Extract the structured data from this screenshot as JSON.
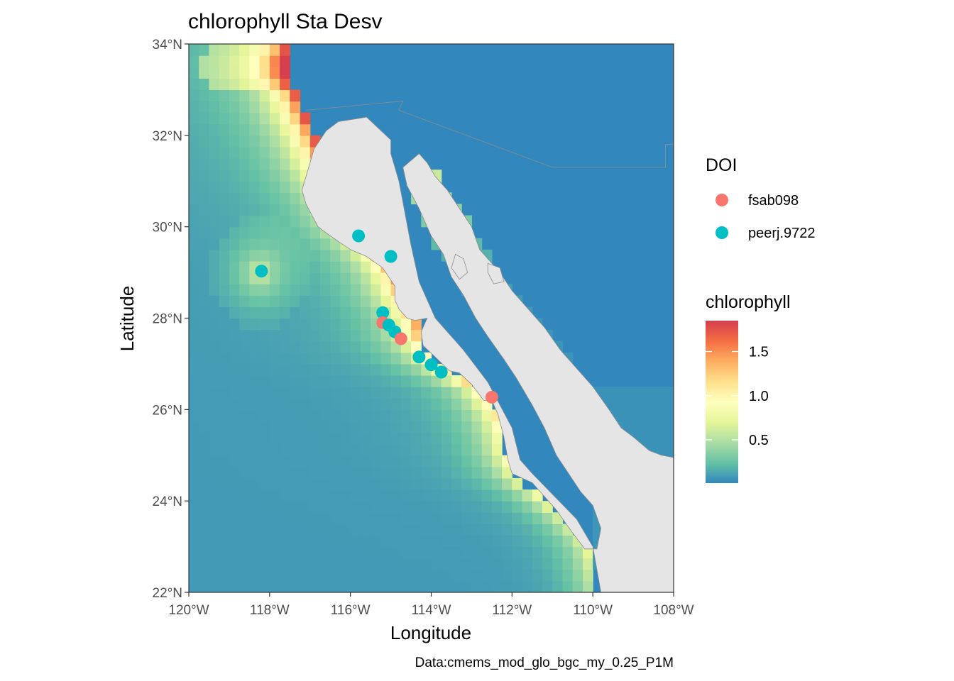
{
  "title": "chlorophyll Sta Desv",
  "caption": "Data:cmems_mod_glo_bgc_my_0.25_P1M",
  "colors": {
    "land": "#e5e5e5",
    "land_stroke": "#8c8c8c",
    "panel_border": "#333333",
    "fsab098": "#F8766D",
    "peerj.9722": "#00BFC4",
    "scale": [
      "#3288BD",
      "#66C2A5",
      "#ABDDA4",
      "#E6F598",
      "#FFFFBF",
      "#FEE08B",
      "#FDAE61",
      "#F46D43",
      "#D53E4F"
    ]
  },
  "chart_data": {
    "type": "map",
    "title": "chlorophyll Sta Desv",
    "xlabel": "Longitude",
    "ylabel": "Latitude",
    "xlim": [
      -120,
      -108
    ],
    "ylim": [
      22,
      34
    ],
    "x_ticks": [
      {
        "value": -120,
        "label": "120°W"
      },
      {
        "value": -118,
        "label": "118°W"
      },
      {
        "value": -116,
        "label": "116°W"
      },
      {
        "value": -114,
        "label": "114°W"
      },
      {
        "value": -112,
        "label": "112°W"
      },
      {
        "value": -110,
        "label": "110°W"
      },
      {
        "value": -108,
        "label": "108°W"
      }
    ],
    "y_ticks": [
      {
        "value": 22,
        "label": "22°N"
      },
      {
        "value": 24,
        "label": "24°N"
      },
      {
        "value": 26,
        "label": "26°N"
      },
      {
        "value": 28,
        "label": "28°N"
      },
      {
        "value": 30,
        "label": "30°N"
      },
      {
        "value": 32,
        "label": "32°N"
      },
      {
        "value": 34,
        "label": "34°N"
      }
    ],
    "grid": false,
    "legend_position": "right",
    "doi_legend": {
      "title": "DOI",
      "entries": [
        {
          "name": "fsab098",
          "color": "#F8766D"
        },
        {
          "name": "peerj.9722",
          "color": "#00BFC4"
        }
      ]
    },
    "colorbar": {
      "title": "chlorophyll",
      "min": 0.01,
      "max": 1.85,
      "ticks": [
        {
          "value": 0.5,
          "label": "0.5"
        },
        {
          "value": 1.0,
          "label": "1.0"
        },
        {
          "value": 1.5,
          "label": "1.5"
        }
      ]
    },
    "points": [
      {
        "lon": -115.8,
        "lat": 29.8,
        "doi": "peerj.9722"
      },
      {
        "lon": -115.0,
        "lat": 29.35,
        "doi": "peerj.9722"
      },
      {
        "lon": -118.2,
        "lat": 29.03,
        "doi": "peerj.9722"
      },
      {
        "lon": -115.2,
        "lat": 28.12,
        "doi": "peerj.9722"
      },
      {
        "lon": -115.2,
        "lat": 27.9,
        "doi": "fsab098"
      },
      {
        "lon": -115.05,
        "lat": 27.85,
        "doi": "peerj.9722"
      },
      {
        "lon": -114.9,
        "lat": 27.7,
        "doi": "peerj.9722"
      },
      {
        "lon": -114.75,
        "lat": 27.55,
        "doi": "fsab098"
      },
      {
        "lon": -114.3,
        "lat": 27.15,
        "doi": "peerj.9722"
      },
      {
        "lon": -114.0,
        "lat": 26.98,
        "doi": "peerj.9722"
      },
      {
        "lon": -113.75,
        "lat": 26.82,
        "doi": "peerj.9722"
      },
      {
        "lon": -112.5,
        "lat": 26.27,
        "doi": "fsab098"
      }
    ],
    "land_polygons": [
      {
        "name": "mainland",
        "coords": [
          [
            -117.4,
            34
          ],
          [
            -108,
            34
          ],
          [
            -108,
            22
          ],
          [
            -109.8,
            22
          ],
          [
            -110,
            23
          ],
          [
            -110.4,
            23.6
          ],
          [
            -111.5,
            24.6
          ],
          [
            -111.8,
            24.9
          ],
          [
            -112,
            25.6
          ],
          [
            -112.6,
            26.6
          ],
          [
            -113.2,
            27.3
          ],
          [
            -113.9,
            28
          ],
          [
            -114.3,
            28.8
          ],
          [
            -114.5,
            29.6
          ],
          [
            -114.65,
            30.3
          ],
          [
            -114.8,
            31
          ],
          [
            -115,
            31.6
          ],
          [
            -115,
            31.9
          ],
          [
            -115.6,
            32.4
          ],
          [
            -116.3,
            32.3
          ],
          [
            -116.6,
            32.1
          ],
          [
            -116.9,
            31.7
          ],
          [
            -117,
            31.4
          ],
          [
            -117.2,
            30.8
          ],
          [
            -117.1,
            30.5
          ],
          [
            -116.8,
            30
          ],
          [
            -116.5,
            29.8
          ],
          [
            -116.0,
            29.5
          ],
          [
            -115.6,
            29.35
          ],
          [
            -115.2,
            29.1
          ],
          [
            -114.9,
            28.7
          ],
          [
            -114.9,
            28.4
          ],
          [
            -114.8,
            28.2
          ],
          [
            -114.6,
            28.0
          ],
          [
            -114.4,
            27.95
          ],
          [
            -114.1,
            28.0
          ],
          [
            -114.25,
            27.7
          ],
          [
            -114.2,
            27.4
          ],
          [
            -113.9,
            27.15
          ],
          [
            -113.55,
            26.85
          ],
          [
            -113.3,
            26.8
          ],
          [
            -113.0,
            26.55
          ],
          [
            -112.7,
            26.2
          ],
          [
            -112.5,
            26.2
          ],
          [
            -112.35,
            25.9
          ],
          [
            -112.2,
            25.4
          ],
          [
            -112.1,
            24.9
          ],
          [
            -112.0,
            24.6
          ],
          [
            -111.5,
            24.4
          ],
          [
            -111.2,
            24.1
          ],
          [
            -110.9,
            23.8
          ],
          [
            -110.5,
            23.3
          ],
          [
            -110.2,
            22.95
          ],
          [
            -109.9,
            22.95
          ],
          [
            -109.8,
            23.4
          ],
          [
            -110.0,
            23.9
          ],
          [
            -110.3,
            24.2
          ],
          [
            -110.6,
            24.6
          ],
          [
            -110.9,
            25.0
          ],
          [
            -111.2,
            25.6
          ],
          [
            -111.5,
            26.1
          ],
          [
            -111.9,
            26.7
          ],
          [
            -112.2,
            27.1
          ],
          [
            -112.6,
            27.6
          ],
          [
            -112.9,
            28.0
          ],
          [
            -113.2,
            28.5
          ],
          [
            -113.5,
            28.9
          ],
          [
            -113.7,
            29.4
          ],
          [
            -114.0,
            29.8
          ],
          [
            -114.3,
            30.4
          ],
          [
            -114.6,
            30.9
          ],
          [
            -114.7,
            31.3
          ],
          [
            -114.3,
            31.6
          ],
          [
            -114.1,
            31.4
          ],
          [
            -113.9,
            31.1
          ],
          [
            -113.6,
            30.8
          ],
          [
            -113.3,
            30.4
          ],
          [
            -113.0,
            30.0
          ],
          [
            -112.8,
            29.5
          ],
          [
            -112.3,
            29.0
          ],
          [
            -112.0,
            28.6
          ],
          [
            -111.6,
            28.2
          ],
          [
            -111.2,
            27.8
          ],
          [
            -110.8,
            27.3
          ],
          [
            -110.4,
            26.9
          ],
          [
            -110.0,
            26.5
          ],
          [
            -109.6,
            26.0
          ],
          [
            -109.3,
            25.6
          ],
          [
            -109.0,
            25.4
          ],
          [
            -108.6,
            25.1
          ],
          [
            -108.3,
            25.0
          ],
          [
            -108,
            24.95
          ],
          [
            -108,
            34
          ],
          [
            -117.4,
            34
          ]
        ]
      }
    ],
    "islands": [
      {
        "coords": [
          [
            -113.4,
            29.4
          ],
          [
            -113.2,
            29.3
          ],
          [
            -113.1,
            29.0
          ],
          [
            -113.3,
            28.85
          ],
          [
            -113.5,
            29.1
          ]
        ]
      },
      {
        "coords": [
          [
            -112.6,
            29.2
          ],
          [
            -112.3,
            29.1
          ],
          [
            -112.2,
            28.8
          ],
          [
            -112.45,
            28.75
          ],
          [
            -112.6,
            29.0
          ]
        ]
      }
    ],
    "border_line": {
      "coords": [
        [
          -117.1,
          32.55
        ],
        [
          -114.7,
          32.75
        ],
        [
          -114.8,
          32.55
        ],
        [
          -111,
          31.3
        ],
        [
          -108.2,
          31.3
        ],
        [
          -108.2,
          31.8
        ],
        [
          -108,
          31.8
        ]
      ]
    }
  }
}
